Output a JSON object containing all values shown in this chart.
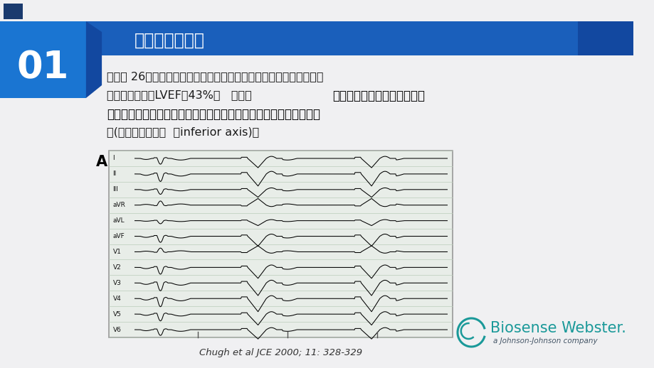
{
  "bg_color": "#f0f0f2",
  "header_bar_color": "#1a5fbb",
  "header_bar_dark": "#1248a0",
  "header_text": "心律失常的危害",
  "header_text_color": "#ffffff",
  "number_text": "01",
  "number_bg_color": "#1a75d2",
  "small_rect_color": "#1a3a6e",
  "body_text_line1": "病例： 26岁女性以心悸，易疲劳以及心功能低下入院；心脏彩超显示",
  "body_text_line2a": "扩张性心肌病及LVEF：43%；   心脏监",
  "body_text_line2b": "示：２４小时有２５０００到",
  "body_text_line3": "５６０００个室性早搏。室性早搏起源于右室流出道间隔部的室性早",
  "body_text_line4": "搏(左束支传导阻滞  ，inferior axis)。",
  "body_text_color": "#1a1a1a",
  "caption_text": "Chugh et al JCE 2000; 11: 328-329",
  "caption_color": "#333333",
  "ecg_bg": "#e8ede8",
  "ecg_border_color": "#999999",
  "label_A": "A",
  "ecg_leads": [
    "I",
    "II",
    "III",
    "aVR",
    "aVL",
    "aVF",
    "V1",
    "V2",
    "V3",
    "V4",
    "V5",
    "V6"
  ],
  "biosense_color": "#1a9999",
  "biosense_text": "Biosense Webster.",
  "jj_text": "a Johnson-Johnson company"
}
